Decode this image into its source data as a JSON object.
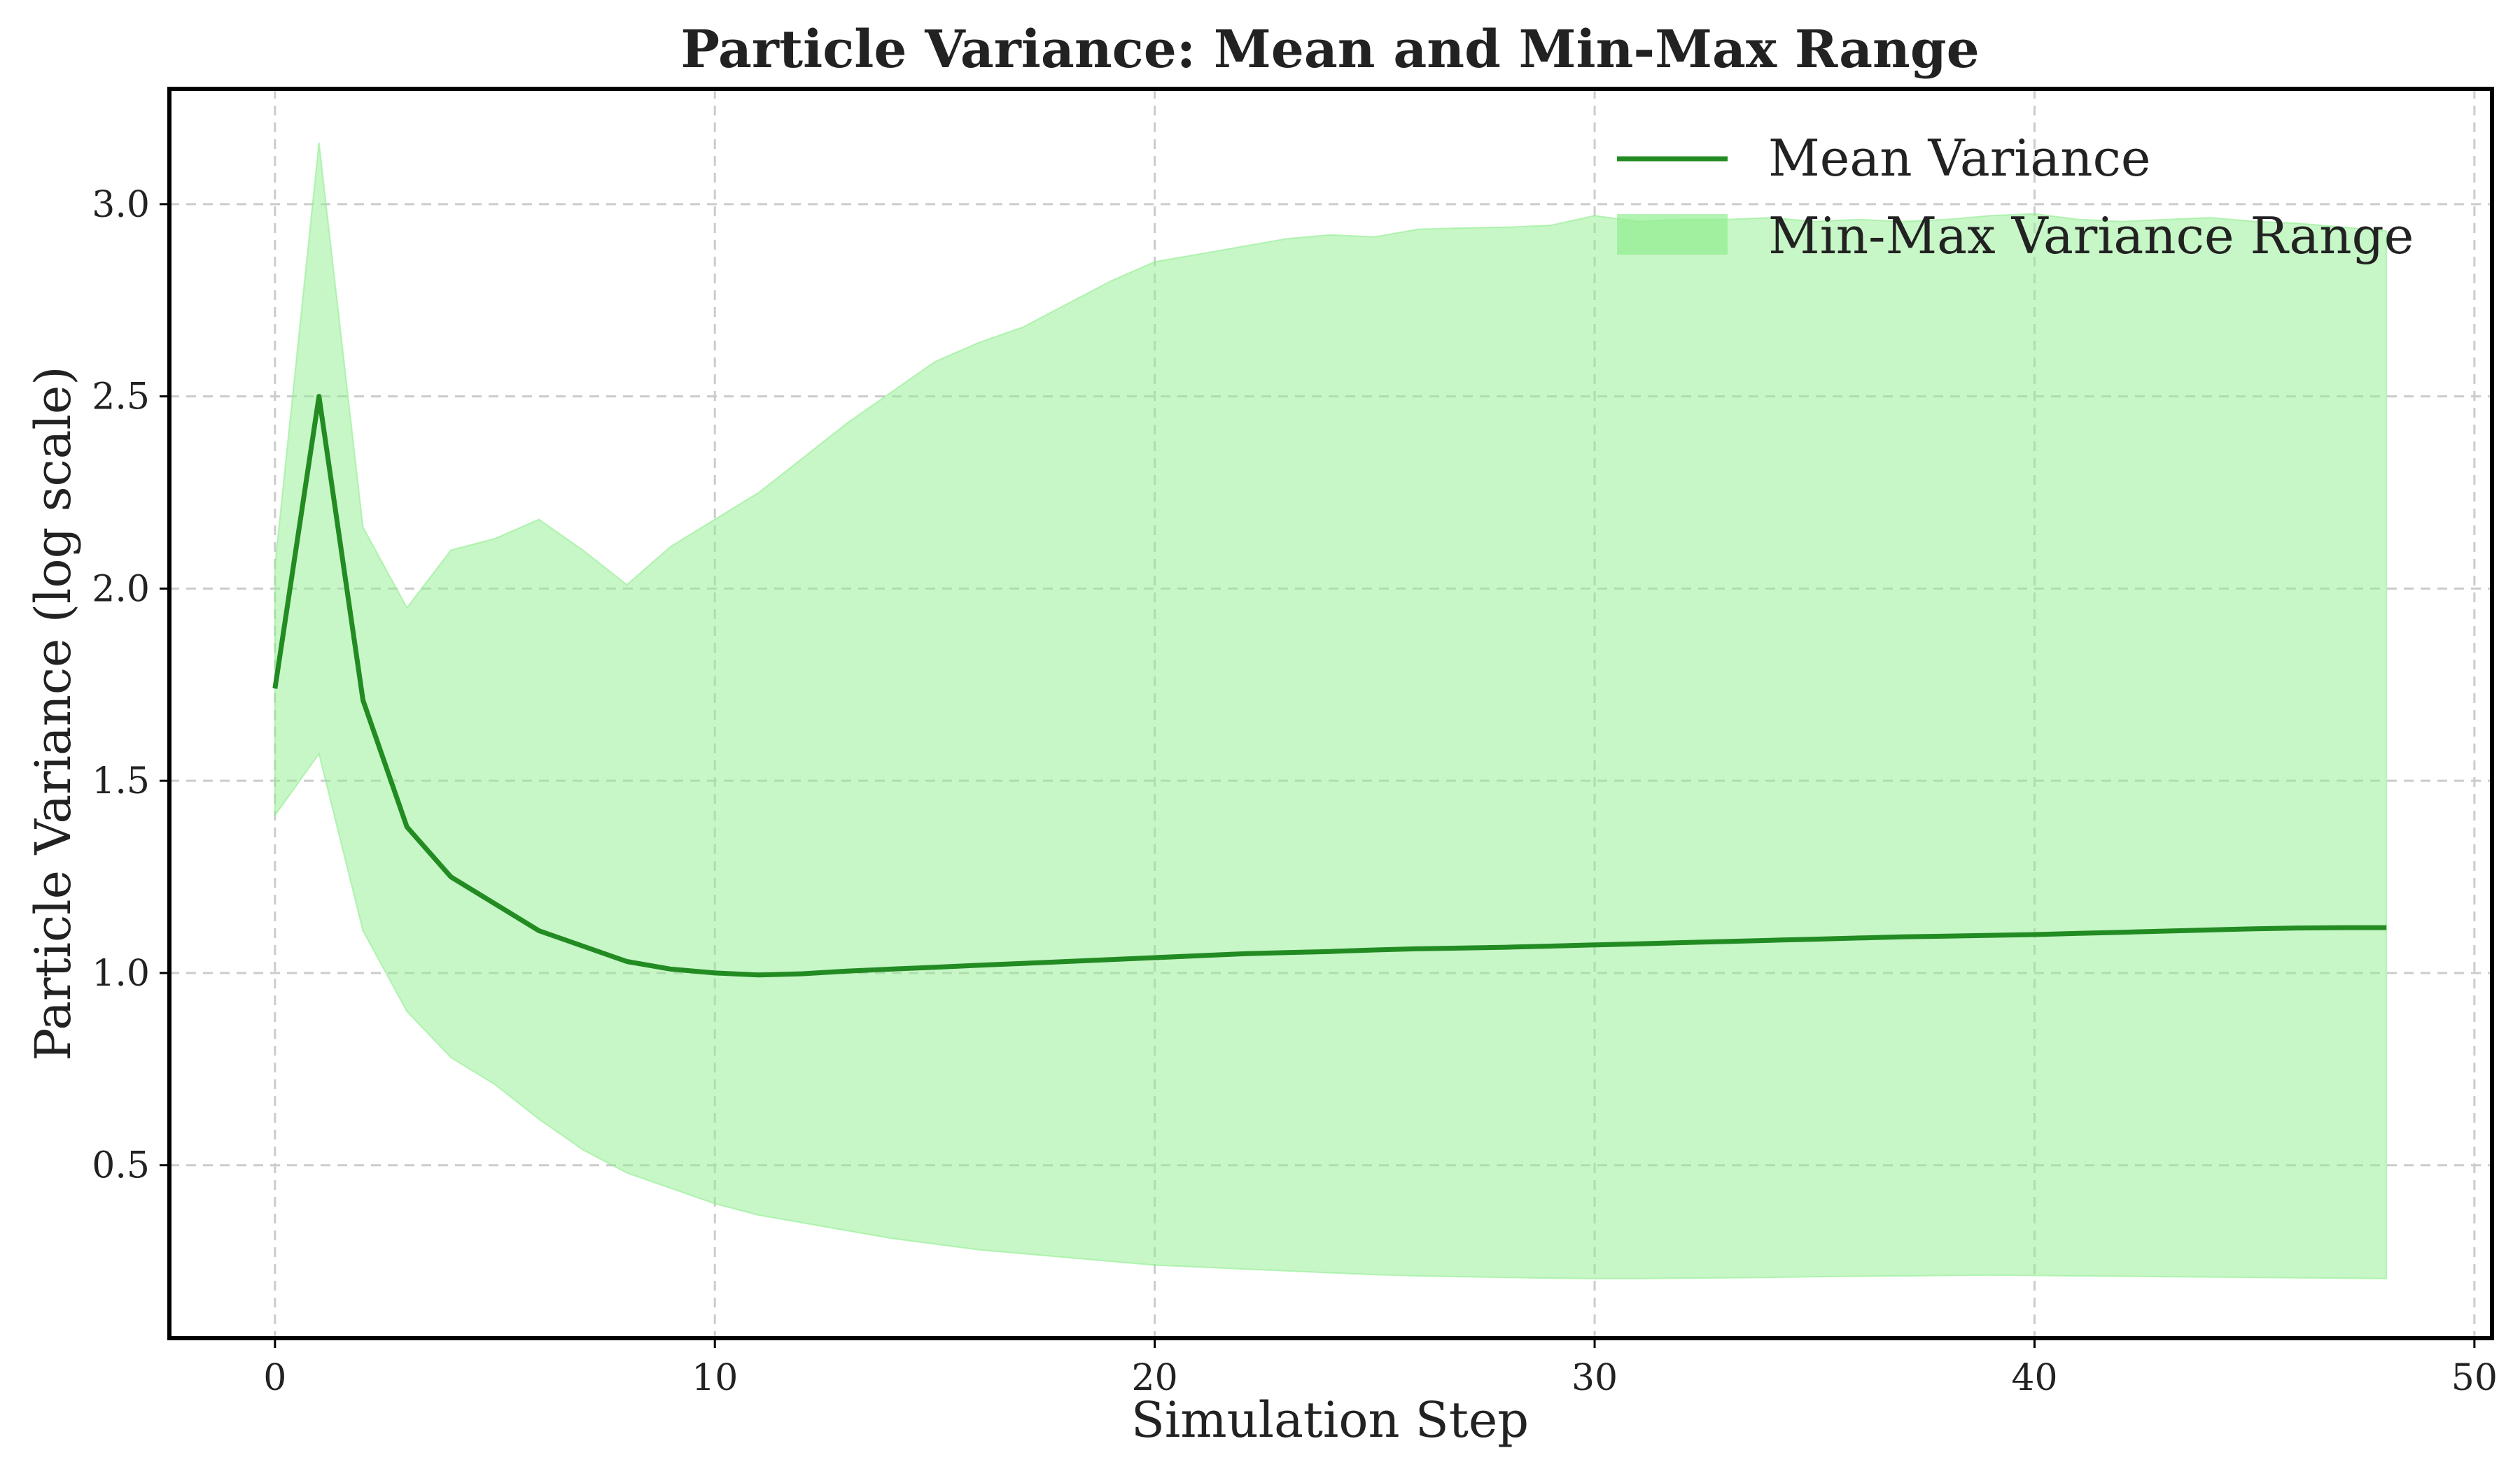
{
  "chart_data": {
    "type": "area",
    "title": "Particle Variance: Mean and Min-Max Range",
    "xlabel": "Simulation Step",
    "ylabel": "Particle Variance (log scale)",
    "xlim": [
      -2.4,
      50.4
    ],
    "ylim": [
      0.05,
      3.3
    ],
    "xticks": [
      0,
      10,
      20,
      30,
      40,
      50
    ],
    "yticks": [
      0.5,
      1.0,
      1.5,
      2.0,
      2.5,
      3.0
    ],
    "xtick_labels": [
      "0",
      "10",
      "20",
      "30",
      "40",
      "50"
    ],
    "ytick_labels": [
      "0.5",
      "1.0",
      "1.5",
      "2.0",
      "2.5",
      "3.0"
    ],
    "grid": true,
    "legend_position": "top-right",
    "x": [
      0,
      1,
      2,
      3,
      4,
      5,
      6,
      7,
      8,
      9,
      10,
      11,
      12,
      13,
      14,
      15,
      16,
      17,
      18,
      19,
      20,
      21,
      22,
      23,
      24,
      25,
      26,
      27,
      28,
      29,
      30,
      31,
      32,
      33,
      34,
      35,
      36,
      37,
      38,
      39,
      40,
      41,
      42,
      43,
      44,
      45,
      46,
      47,
      48
    ],
    "series": [
      {
        "name": "Mean Variance",
        "kind": "line",
        "color": "#228b22",
        "values": [
          1.74,
          2.5,
          1.71,
          1.38,
          1.25,
          1.18,
          1.11,
          1.07,
          1.03,
          1.01,
          1.0,
          0.995,
          0.998,
          1.005,
          1.01,
          1.015,
          1.02,
          1.025,
          1.03,
          1.035,
          1.04,
          1.045,
          1.05,
          1.053,
          1.056,
          1.06,
          1.063,
          1.065,
          1.067,
          1.07,
          1.073,
          1.076,
          1.079,
          1.082,
          1.085,
          1.088,
          1.091,
          1.094,
          1.096,
          1.098,
          1.1,
          1.103,
          1.106,
          1.109,
          1.112,
          1.115,
          1.117,
          1.118,
          1.118
        ]
      },
      {
        "name": "Min-Max Variance Range",
        "kind": "band",
        "color": "#90ee90",
        "lower": [
          1.41,
          1.57,
          1.11,
          0.9,
          0.78,
          0.71,
          0.62,
          0.54,
          0.48,
          0.44,
          0.4,
          0.37,
          0.35,
          0.33,
          0.31,
          0.295,
          0.28,
          0.27,
          0.26,
          0.25,
          0.24,
          0.235,
          0.23,
          0.225,
          0.22,
          0.215,
          0.212,
          0.21,
          0.208,
          0.206,
          0.205,
          0.205,
          0.206,
          0.207,
          0.208,
          0.21,
          0.211,
          0.212,
          0.213,
          0.214,
          0.213,
          0.212,
          0.211,
          0.21,
          0.209,
          0.208,
          0.207,
          0.206,
          0.205
        ],
        "upper": [
          2.06,
          3.16,
          2.16,
          1.95,
          2.1,
          2.13,
          2.18,
          2.1,
          2.01,
          2.11,
          2.18,
          2.25,
          2.34,
          2.43,
          2.51,
          2.59,
          2.64,
          2.68,
          2.74,
          2.8,
          2.85,
          2.87,
          2.89,
          2.91,
          2.92,
          2.915,
          2.935,
          2.938,
          2.94,
          2.945,
          2.97,
          2.955,
          2.96,
          2.96,
          2.965,
          2.955,
          2.96,
          2.955,
          2.96,
          2.97,
          2.975,
          2.96,
          2.955,
          2.96,
          2.965,
          2.955,
          2.95,
          2.94,
          2.93
        ]
      }
    ]
  }
}
